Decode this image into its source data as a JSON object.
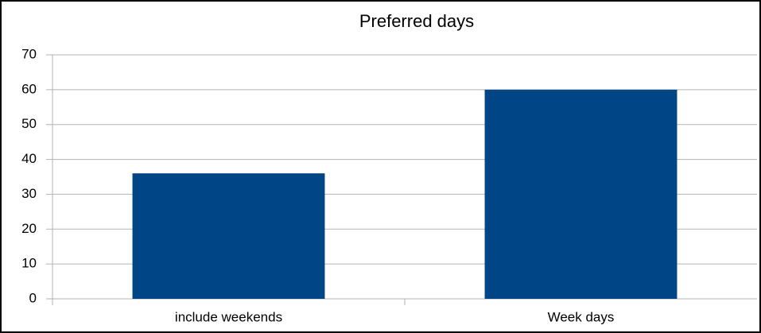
{
  "chart_data": {
    "type": "bar",
    "title": "Preferred days",
    "categories": [
      "include weekends",
      "Week days"
    ],
    "values": [
      36,
      60
    ],
    "color": "#004586",
    "ylim": [
      0,
      70
    ],
    "yticks": [
      0,
      10,
      20,
      30,
      40,
      50,
      60,
      70
    ],
    "grid": true
  }
}
